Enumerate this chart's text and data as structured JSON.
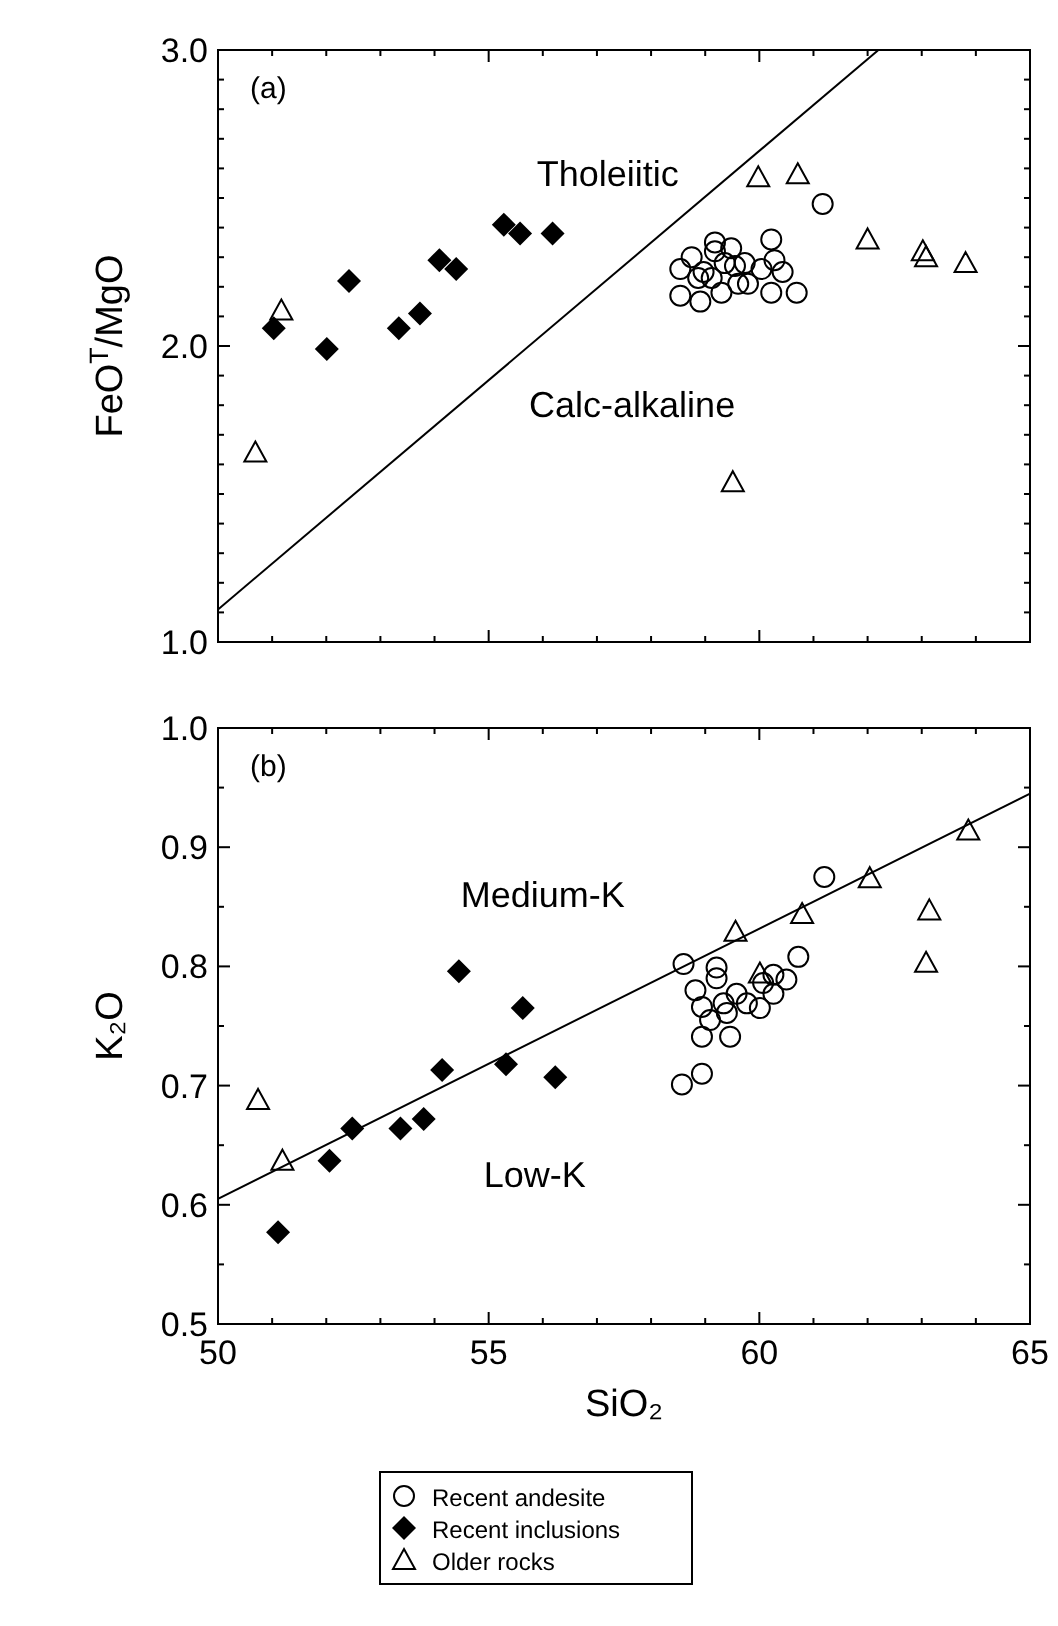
{
  "chart_data": [
    {
      "type": "scatter",
      "title": "(a)",
      "ylabel": "FeO$^{T}$/MgO",
      "xlim": [
        50,
        65
      ],
      "ylim": [
        1,
        3
      ],
      "tick_labels": "y",
      "legend": false,
      "xticks": [
        50,
        {
          "value": 51,
          "label": null
        },
        {
          "value": 52,
          "label": null
        },
        {
          "value": 53,
          "label": null
        },
        {
          "value": 54,
          "label": null
        },
        55,
        {
          "value": 56,
          "label": null
        },
        {
          "value": 57,
          "label": null
        },
        {
          "value": 58,
          "label": null
        },
        {
          "value": 59,
          "label": null
        },
        60,
        {
          "value": 61,
          "label": null
        },
        {
          "value": 62,
          "label": null
        },
        {
          "value": 63,
          "label": null
        },
        {
          "value": 64,
          "label": null
        },
        65
      ],
      "yticks": [
        {
          "value": 1,
          "label": "1.0"
        },
        {
          "value": 1.1,
          "label": null
        },
        {
          "value": 1.2,
          "label": null
        },
        {
          "value": 1.3,
          "label": null
        },
        {
          "value": 1.4,
          "label": null
        },
        {
          "value": 1.5,
          "label": null
        },
        {
          "value": 1.6,
          "label": null
        },
        {
          "value": 1.7,
          "label": null
        },
        {
          "value": 1.8,
          "label": null
        },
        {
          "value": 1.9,
          "label": null
        },
        {
          "value": 2,
          "label": "2.0"
        },
        {
          "value": 2.1,
          "label": null
        },
        {
          "value": 2.2,
          "label": null
        },
        {
          "value": 2.3,
          "label": null
        },
        {
          "value": 2.4,
          "label": null
        },
        {
          "value": 2.5,
          "label": null
        },
        {
          "value": 2.6,
          "label": null
        },
        {
          "value": 2.7,
          "label": null
        },
        {
          "value": 2.8,
          "label": null
        },
        {
          "value": 2.9,
          "label": null
        },
        {
          "value": 3,
          "label": "3.0"
        }
      ],
      "annotations": [
        "Tholeiitic",
        "Calc-alkaline"
      ],
      "series": [
        {
          "type": "scatter",
          "marker": "circle",
          "color": "#000000",
          "x": [
            61.17,
            58.54,
            58.54,
            58.91,
            58.75,
            58.97,
            59.18,
            59.18,
            59.3,
            59.36,
            59.48,
            59.55,
            59.61,
            59.73,
            60.04,
            60.22,
            60.28,
            60.43,
            60.22,
            60.69,
            59.12,
            58.87,
            59.79
          ],
          "values": [
            2.48,
            2.26,
            2.17,
            2.15,
            2.3,
            2.25,
            2.35,
            2.32,
            2.18,
            2.28,
            2.33,
            2.27,
            2.21,
            2.28,
            2.26,
            2.36,
            2.29,
            2.25,
            2.18,
            2.18,
            2.23,
            2.23,
            2.21
          ]
        },
        {
          "type": "scatter",
          "marker": "diamond",
          "color": "#000000",
          "x": [
            51.03,
            52.01,
            52.42,
            53.34,
            53.73,
            54.09,
            54.4,
            55.28,
            55.58,
            56.18
          ],
          "values": [
            2.06,
            1.99,
            2.22,
            2.06,
            2.11,
            2.29,
            2.26,
            2.41,
            2.38,
            2.38
          ]
        },
        {
          "type": "scatter",
          "marker": "triangle",
          "color": "#000000",
          "x": [
            50.69,
            51.17,
            59.98,
            60.71,
            59.51,
            62.0,
            63.02,
            63.08,
            63.81
          ],
          "values": [
            1.64,
            2.12,
            2.57,
            2.58,
            1.54,
            2.36,
            2.32,
            2.3,
            2.28
          ]
        },
        {
          "type": "line",
          "color": "#000000",
          "x": [
            50,
            62.2
          ],
          "values": [
            1.11,
            3.0
          ]
        }
      ]
    },
    {
      "type": "scatter",
      "title": "(b)",
      "ylabel": "K₂O",
      "xlabel": "SiO₂",
      "xlim": [
        50,
        65
      ],
      "ylim": [
        0.5,
        1
      ],
      "legend": "bottom",
      "xticks": [
        50,
        {
          "value": 51,
          "label": null
        },
        {
          "value": 52,
          "label": null
        },
        {
          "value": 53,
          "label": null
        },
        {
          "value": 54,
          "label": null
        },
        55,
        {
          "value": 56,
          "label": null
        },
        {
          "value": 57,
          "label": null
        },
        {
          "value": 58,
          "label": null
        },
        {
          "value": 59,
          "label": null
        },
        60,
        {
          "value": 61,
          "label": null
        },
        {
          "value": 62,
          "label": null
        },
        {
          "value": 63,
          "label": null
        },
        {
          "value": 64,
          "label": null
        },
        65
      ],
      "yticks": [
        0.5,
        {
          "value": 0.55,
          "label": null
        },
        0.6,
        {
          "value": 0.65,
          "label": null
        },
        0.7,
        {
          "value": 0.75,
          "label": null
        },
        0.8,
        {
          "value": 0.85,
          "label": null
        },
        0.9,
        {
          "value": 0.95,
          "label": null
        },
        {
          "value": 1,
          "label": "1.0"
        }
      ],
      "annotations": [
        "Medium-K",
        "Low-K"
      ],
      "series": [
        {
          "name": "Recent andesite",
          "type": "scatter",
          "marker": "circle",
          "color": "#000000",
          "x": [
            61.2,
            58.6,
            58.57,
            58.94,
            58.94,
            59.46,
            58.82,
            59.21,
            59.21,
            58.94,
            59.09,
            59.34,
            59.58,
            59.77,
            60.01,
            60.26,
            60.26,
            60.5,
            60.72,
            59.4,
            60.07
          ],
          "values": [
            0.875,
            0.802,
            0.701,
            0.71,
            0.741,
            0.741,
            0.78,
            0.799,
            0.79,
            0.766,
            0.755,
            0.769,
            0.777,
            0.769,
            0.765,
            0.777,
            0.793,
            0.789,
            0.808,
            0.761,
            0.786
          ]
        },
        {
          "name": "Recent inclusions",
          "type": "scatter",
          "marker": "diamond",
          "color": "#000000",
          "x": [
            51.11,
            52.06,
            52.48,
            53.37,
            53.8,
            54.14,
            54.45,
            55.32,
            55.63,
            56.23
          ],
          "values": [
            0.577,
            0.637,
            0.664,
            0.664,
            0.672,
            0.713,
            0.796,
            0.718,
            0.765,
            0.707
          ]
        },
        {
          "name": "Older rocks",
          "type": "scatter",
          "marker": "triangle",
          "color": "#000000",
          "x": [
            50.74,
            51.19,
            59.56,
            60.79,
            62.04,
            63.14,
            63.08,
            63.86,
            60.01
          ],
          "values": [
            0.688,
            0.637,
            0.829,
            0.844,
            0.874,
            0.847,
            0.803,
            0.914,
            0.794
          ]
        },
        {
          "type": "line",
          "color": "#000000",
          "x": [
            50,
            65
          ],
          "values": [
            0.605,
            0.945
          ]
        }
      ]
    }
  ]
}
